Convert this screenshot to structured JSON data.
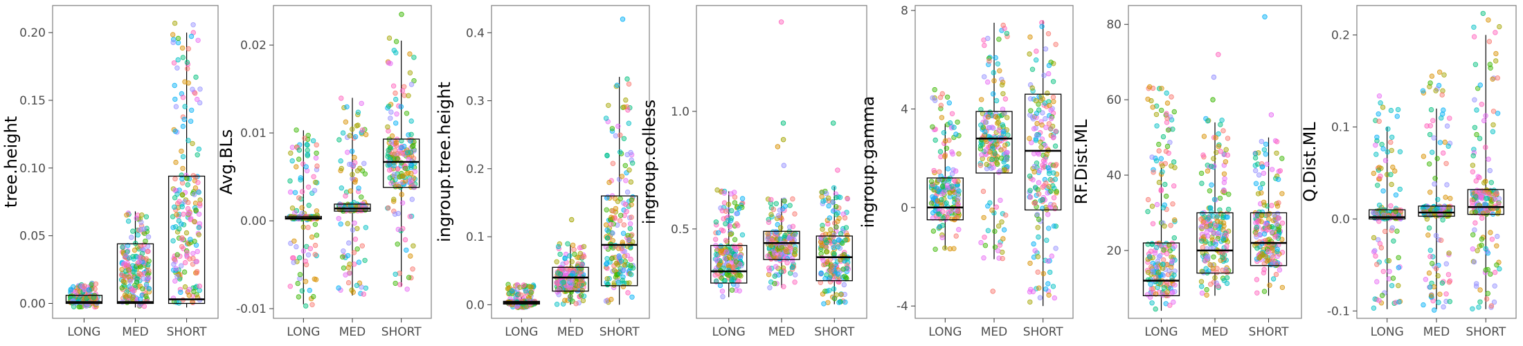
{
  "chart_data": [
    {
      "type": "box-jitter",
      "ylabel": "tree.height",
      "categories": [
        "LONG",
        "MED",
        "SHORT"
      ],
      "ylim": [
        -0.011,
        0.22
      ],
      "yticks": [
        0.0,
        0.05,
        0.1,
        0.15,
        0.2
      ],
      "ytick_labels": [
        "0.00",
        "0.05",
        "0.10",
        "0.15",
        "0.20"
      ],
      "boxes": [
        {
          "q1": 0.0,
          "median": 0.001,
          "q3": 0.006,
          "lo": -0.002,
          "hi": 0.014
        },
        {
          "q1": 0.0,
          "median": 0.001,
          "q3": 0.044,
          "lo": -0.003,
          "hi": 0.068
        },
        {
          "q1": 0.0,
          "median": 0.003,
          "q3": 0.094,
          "lo": -0.003,
          "hi": 0.2
        }
      ],
      "point_range": [
        [
          -0.003,
          0.015
        ],
        [
          -0.003,
          0.068
        ],
        [
          -0.003,
          0.207
        ]
      ],
      "outliers": [
        [],
        [],
        []
      ]
    },
    {
      "type": "box-jitter",
      "ylabel": "Avg.BLs",
      "categories": [
        "LONG",
        "MED",
        "SHORT"
      ],
      "ylim": [
        -0.0111,
        0.0245
      ],
      "yticks": [
        -0.01,
        0.0,
        0.01,
        0.02
      ],
      "ytick_labels": [
        "-0.01",
        "0.00",
        "0.01",
        "0.02"
      ],
      "boxes": [
        {
          "q1": 0.0002,
          "median": 0.0003,
          "q3": 0.0005,
          "lo": -0.0095,
          "hi": 0.0103
        },
        {
          "q1": 0.0011,
          "median": 0.0014,
          "q3": 0.0019,
          "lo": -0.0085,
          "hi": 0.014
        },
        {
          "q1": 0.0038,
          "median": 0.0067,
          "q3": 0.0093,
          "lo": -0.0075,
          "hi": 0.0205
        }
      ],
      "point_range": [
        [
          -0.0098,
          0.0105
        ],
        [
          -0.009,
          0.0145
        ],
        [
          -0.008,
          0.0208
        ]
      ],
      "outliers": [
        [],
        [],
        [
          0.0235
        ]
      ]
    },
    {
      "type": "box-jitter",
      "ylabel": "ingroup.tree.height",
      "categories": [
        "LONG",
        "MED",
        "SHORT"
      ],
      "ylim": [
        -0.02,
        0.44
      ],
      "yticks": [
        0.0,
        0.1,
        0.2,
        0.3,
        0.4
      ],
      "ytick_labels": [
        "0.0",
        "0.1",
        "0.2",
        "0.3",
        "0.4"
      ],
      "boxes": [
        {
          "q1": 0.001,
          "median": 0.003,
          "q3": 0.005,
          "lo": -0.003,
          "hi": 0.012
        },
        {
          "q1": 0.02,
          "median": 0.04,
          "q3": 0.055,
          "lo": 0.0,
          "hi": 0.088
        },
        {
          "q1": 0.028,
          "median": 0.088,
          "q3": 0.16,
          "lo": 0.0,
          "hi": 0.335
        }
      ],
      "point_range": [
        [
          -0.005,
          0.03
        ],
        [
          0.0,
          0.09
        ],
        [
          0.0,
          0.335
        ]
      ],
      "outliers": [
        [],
        [
          0.125
        ],
        [
          0.42
        ]
      ]
    },
    {
      "type": "box-jitter",
      "ylabel": "ingroup.colless",
      "categories": [
        "LONG",
        "MED",
        "SHORT"
      ],
      "ylim": [
        0.12,
        1.45
      ],
      "yticks": [
        0.5,
        1.0
      ],
      "ytick_labels": [
        "0.5",
        "1.0"
      ],
      "boxes": [
        {
          "q1": 0.27,
          "median": 0.32,
          "q3": 0.43,
          "lo": 0.21,
          "hi": 0.66
        },
        {
          "q1": 0.37,
          "median": 0.44,
          "q3": 0.49,
          "lo": 0.25,
          "hi": 0.63
        },
        {
          "q1": 0.28,
          "median": 0.38,
          "q3": 0.47,
          "lo": 0.18,
          "hi": 0.68
        }
      ],
      "point_range": [
        [
          0.21,
          0.68
        ],
        [
          0.25,
          0.63
        ],
        [
          0.18,
          0.68
        ]
      ],
      "outliers": [
        [],
        [
          0.77,
          0.85,
          0.88,
          0.95,
          1.38
        ],
        [
          0.75,
          0.95
        ]
      ]
    },
    {
      "type": "box-jitter",
      "ylabel": "ingroup.gamma",
      "categories": [
        "LONG",
        "MED",
        "SHORT"
      ],
      "ylim": [
        -4.5,
        8.2
      ],
      "yticks": [
        -4,
        0,
        4,
        8
      ],
      "ytick_labels": [
        "-4",
        "0",
        "4",
        "8"
      ],
      "boxes": [
        {
          "q1": -0.5,
          "median": 0.0,
          "q3": 1.2,
          "lo": -1.7,
          "hi": 3.4
        },
        {
          "q1": 1.4,
          "median": 2.8,
          "q3": 3.9,
          "lo": -2.1,
          "hi": 7.5
        },
        {
          "q1": -0.1,
          "median": 2.3,
          "q3": 4.6,
          "lo": -4.0,
          "hi": 7.6
        }
      ],
      "point_range": [
        [
          -1.7,
          4.9
        ],
        [
          -2.1,
          7.5
        ],
        [
          -4.0,
          7.6
        ]
      ],
      "outliers": [
        [],
        [
          -3.4
        ],
        []
      ]
    },
    {
      "type": "box-jitter",
      "ylabel": "RF.Dist.ML",
      "categories": [
        "LONG",
        "MED",
        "SHORT"
      ],
      "ylim": [
        2,
        85
      ],
      "yticks": [
        20,
        40,
        60,
        80
      ],
      "ytick_labels": [
        "20",
        "40",
        "60",
        "80"
      ],
      "boxes": [
        {
          "q1": 8,
          "median": 12,
          "q3": 22,
          "lo": 4,
          "hi": 42
        },
        {
          "q1": 14,
          "median": 20,
          "q3": 30,
          "lo": 8,
          "hi": 54
        },
        {
          "q1": 16,
          "median": 22,
          "q3": 30,
          "lo": 8,
          "hi": 50
        }
      ],
      "point_range": [
        [
          4,
          64
        ],
        [
          8,
          55
        ],
        [
          8,
          50
        ]
      ],
      "outliers": [
        [],
        [
          60,
          66,
          72
        ],
        [
          56,
          82
        ]
      ]
    },
    {
      "type": "box-jitter",
      "ylabel": "Q.Dist.ML",
      "categories": [
        "LONG",
        "MED",
        "SHORT"
      ],
      "ylim": [
        -0.108,
        0.232
      ],
      "yticks": [
        -0.1,
        0.0,
        0.1,
        0.2
      ],
      "ytick_labels": [
        "-0.1",
        "0.0",
        "0.1",
        "0.2"
      ],
      "boxes": [
        {
          "q1": 0.0,
          "median": 0.002,
          "q3": 0.01,
          "lo": -0.098,
          "hi": 0.1
        },
        {
          "q1": 0.003,
          "median": 0.007,
          "q3": 0.014,
          "lo": -0.098,
          "hi": 0.12
        },
        {
          "q1": 0.005,
          "median": 0.013,
          "q3": 0.032,
          "lo": -0.098,
          "hi": 0.2
        }
      ],
      "point_range": [
        [
          -0.1,
          0.135
        ],
        [
          -0.1,
          0.165
        ],
        [
          -0.1,
          0.225
        ]
      ],
      "outliers": [
        [],
        [],
        []
      ]
    }
  ],
  "colors": {
    "points": [
      "#F8766D",
      "#D89000",
      "#A3A500",
      "#39B600",
      "#00BF7D",
      "#00BFC4",
      "#00B0F6",
      "#9590FF",
      "#E76BF3",
      "#FF62BC"
    ],
    "box": "#000000",
    "panel_border": "#7f7f7f",
    "tick_text": "#4d4d4d"
  }
}
